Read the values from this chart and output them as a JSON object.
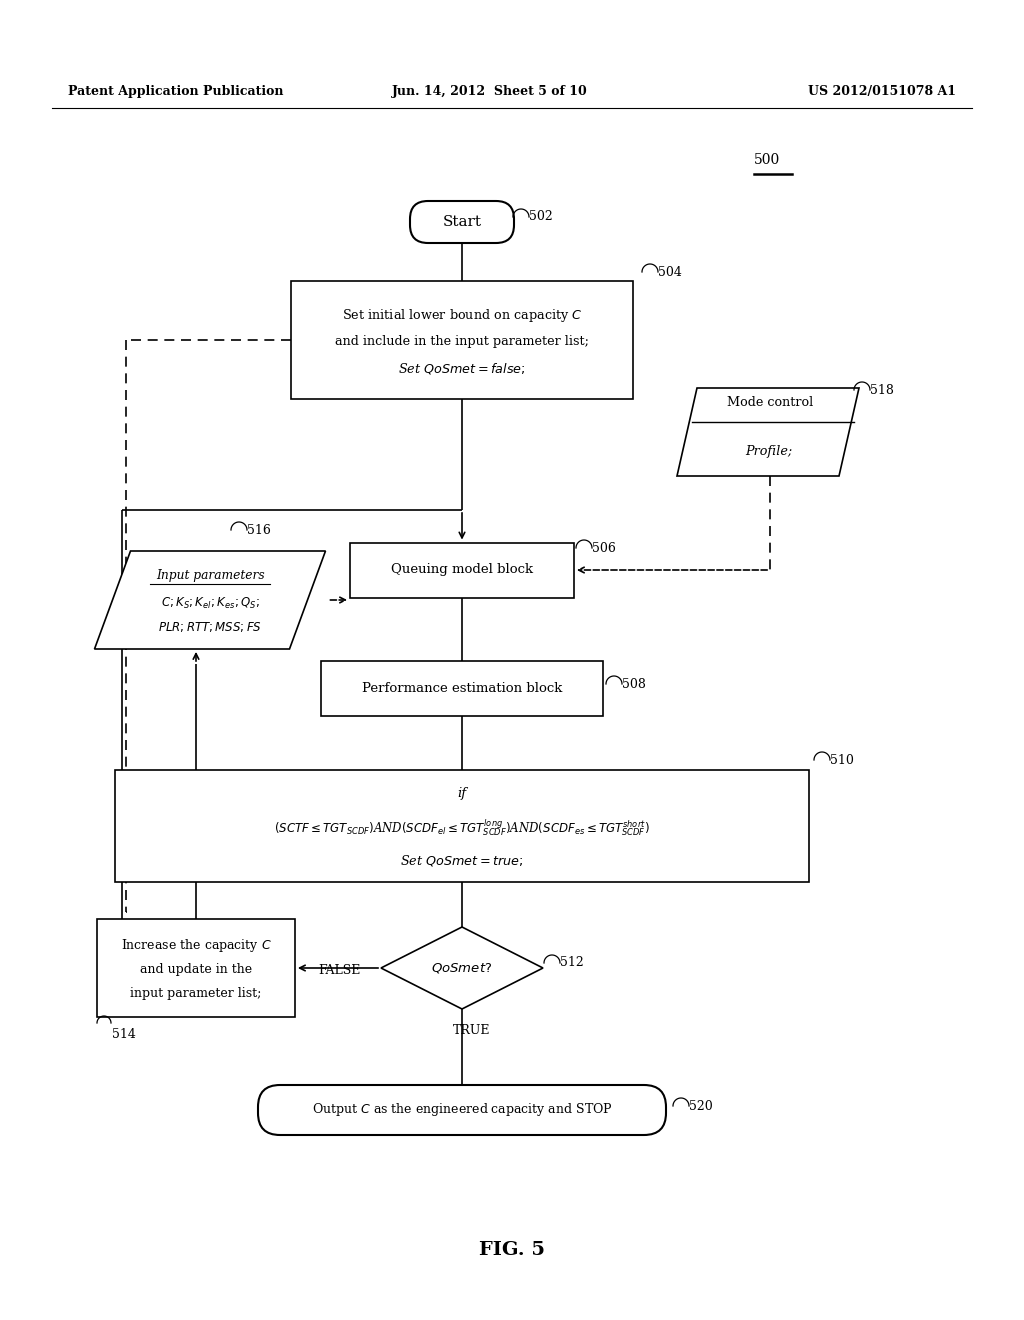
{
  "bg_color": "#ffffff",
  "header_left": "Patent Application Publication",
  "header_mid": "Jun. 14, 2012  Sheet 5 of 10",
  "header_right": "US 2012/0151078 A1",
  "fig_label": "FIG. 5",
  "diagram_ref": "500",
  "start_label": "Start",
  "start_id": "502",
  "box504_line1": "Set initial lower bound on capacity $C$",
  "box504_line2": "and include in the input parameter list;",
  "box504_line3": "Set $QoSmet = false;$",
  "box504_id": "504",
  "mode_line1": "Mode control",
  "mode_line2": "Profile;",
  "mode_id": "518",
  "para_line1": "Input parameters",
  "para_line2": "$C; K_S; K_{el}; K_{es}; Q_S;$",
  "para_line3": "$PLR; RTT; MSS; FS$",
  "para_id": "516",
  "queue_label": "Queuing model block",
  "queue_id": "506",
  "perf_label": "Performance estimation block",
  "perf_id": "508",
  "if_line1": "if",
  "if_line2": "$(SCTF \\leq TGT_{SCDF})$AND$(SCDF_{el} \\leq TGT^{long}_{SCDF})$AND$(SCDF_{es} \\leq TGT^{short}_{SCDF})$",
  "if_line3": "Set $QoSmet = true;$",
  "if_id": "510",
  "diamond_label": "$QoSmet?$",
  "diamond_id": "512",
  "false_label": "FALSE",
  "true_label": "TRUE",
  "box514_line1": "Increase the capacity $C$",
  "box514_line2": "and update in the",
  "box514_line3": "input parameter list;",
  "box514_id": "514",
  "stop_label": "Output $C$as the engineered capacity and STOP",
  "stop_id": "520"
}
